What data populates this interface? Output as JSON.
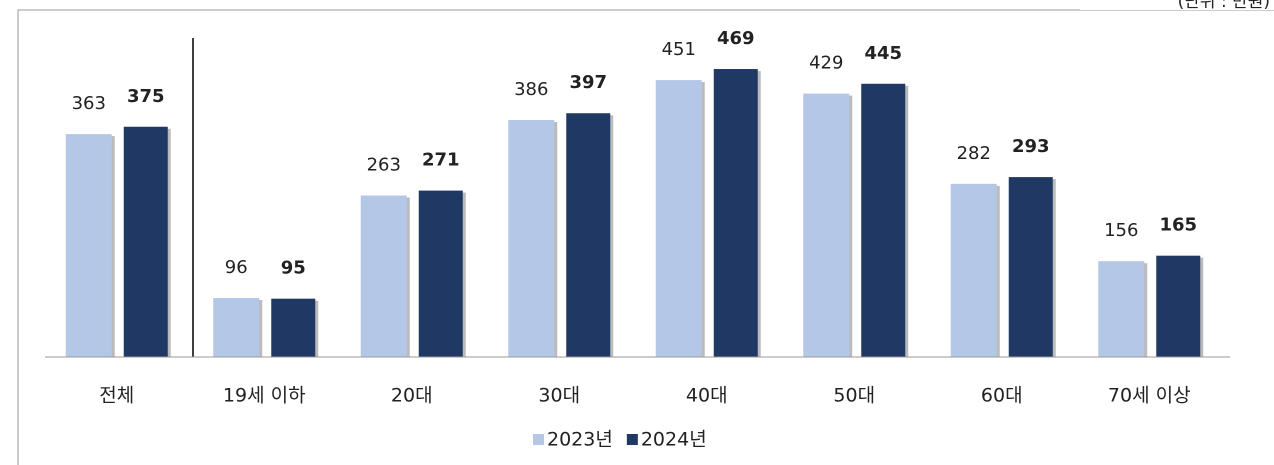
{
  "chart_data": {
    "type": "bar",
    "unit_note": "(단위 : 만원)",
    "categories": [
      "전체",
      "19세 이하",
      "20대",
      "30대",
      "40대",
      "50대",
      "60대",
      "70세 이상"
    ],
    "series": [
      {
        "name": "2023년",
        "color": "#b4c7e7",
        "values": [
          363,
          96,
          263,
          386,
          451,
          429,
          282,
          156
        ]
      },
      {
        "name": "2024년",
        "color": "#1f3864",
        "values": [
          375,
          95,
          271,
          397,
          469,
          445,
          293,
          165
        ]
      }
    ],
    "ylim": [
      0,
      500
    ],
    "legend": "bottom"
  }
}
